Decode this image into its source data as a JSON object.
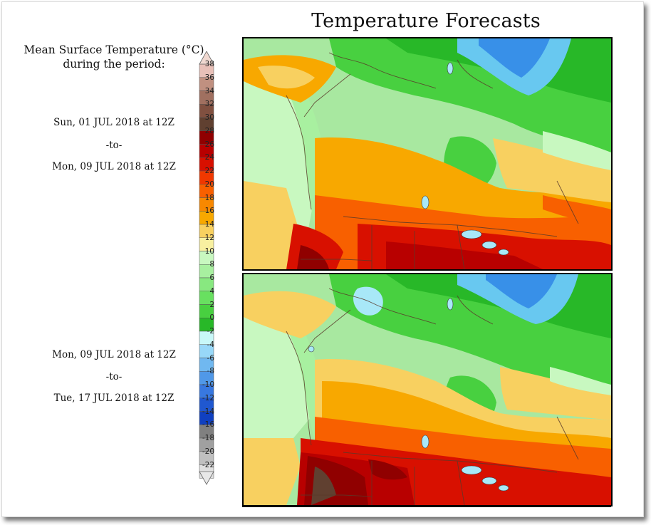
{
  "title": "Temperature Forecasts",
  "legend": {
    "title_line1": "Mean Surface Temperature (°C)",
    "title_line2": "during the period:",
    "ticks": [
      "38",
      "36",
      "34",
      "32",
      "30",
      "28",
      "26",
      "24",
      "22",
      "20",
      "18",
      "16",
      "14",
      "12",
      "10",
      "8",
      "6",
      "4",
      "2",
      "0",
      "-2",
      "-4",
      "-6",
      "-8",
      "-10",
      "-12",
      "-14",
      "-16",
      "-18",
      "-20",
      "-22"
    ],
    "colors": [
      "#e8c0b8",
      "#c09080",
      "#a07060",
      "#805040",
      "#604030",
      "#900000",
      "#b80000",
      "#d81000",
      "#f03800",
      "#f86000",
      "#f88800",
      "#f8a800",
      "#f8d060",
      "#f8f0a0",
      "#c8f8c0",
      "#a8f0a0",
      "#88e880",
      "#68e060",
      "#48d040",
      "#28b828",
      "#c8f8f8",
      "#98d8f8",
      "#70b8f0",
      "#5098e8",
      "#3878e0",
      "#2058d0",
      "#1040c0",
      "#808080",
      "#a0a0a0",
      "#c0c0c0",
      "#e0e0e0"
    ]
  },
  "periods": [
    {
      "start": "Sun, 01 JUL 2018 at 12Z",
      "sep": "-to-",
      "end": "Mon, 09 JUL 2018 at 12Z"
    },
    {
      "start": "Mon, 09 JUL 2018 at 12Z",
      "sep": "-to-",
      "end": "Tue, 17 JUL 2018 at 12Z"
    }
  ],
  "colors": {
    "cold": "#a8e8f8",
    "coldest": "#3878e0",
    "cool_green": "#28b828",
    "mid_green": "#68e060",
    "light_green": "#c8f8c0",
    "yellow": "#f8d060",
    "orange": "#f8a800",
    "red_orange": "#f86000",
    "red": "#d81000",
    "dark_red": "#900000",
    "brown": "#604030"
  }
}
